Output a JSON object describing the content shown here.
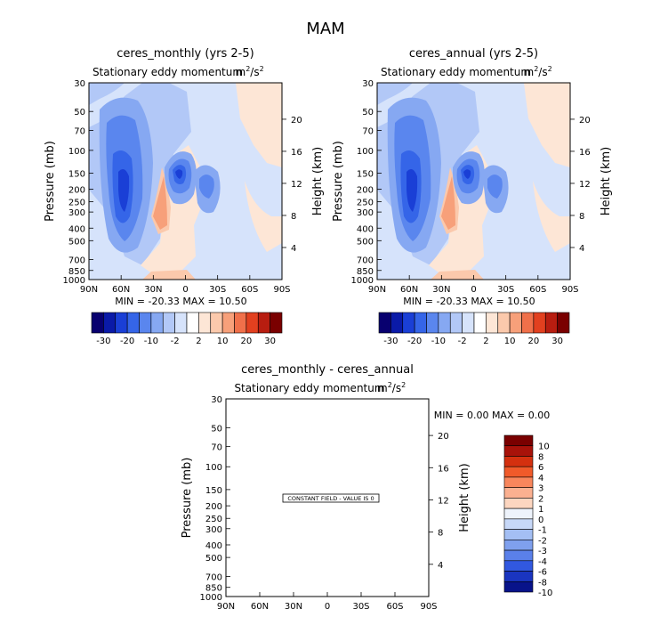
{
  "figure_title": "MAM",
  "chart_data": [
    {
      "type": "contour",
      "title": "ceres_monthly (yrs 2-5)",
      "subtitle": "Stationary eddy momentum",
      "units_base": "m",
      "units_sup1": "2",
      "units_sep": "/s",
      "units_sup2": "2",
      "ylabel": "Pressure (mb)",
      "ylabel_right": "Height (km)",
      "x_ticks": [
        "90N",
        "60N",
        "30N",
        "0",
        "30S",
        "60S",
        "90S"
      ],
      "x_range": [
        90,
        -90
      ],
      "pressure_ticks": [
        "30",
        "50",
        "70",
        "100",
        "150",
        "200",
        "250",
        "300",
        "400",
        "500",
        "700",
        "850",
        "1000"
      ],
      "pressure_values": [
        30,
        50,
        70,
        100,
        150,
        200,
        250,
        300,
        400,
        500,
        700,
        850,
        1000
      ],
      "height_ticks": [
        "20",
        "16",
        "12",
        "8",
        "4"
      ],
      "min_text": "MIN = -20.33",
      "max_text": "MAX = 10.50",
      "min": -20.33,
      "max": 10.5,
      "colorbar_labels": [
        "-30",
        "-20",
        "-10",
        "-2",
        "2",
        "10",
        "20",
        "30"
      ]
    },
    {
      "type": "contour",
      "title": "ceres_annual (yrs 2-5)",
      "subtitle": "Stationary eddy momentum",
      "units_base": "m",
      "units_sup1": "2",
      "units_sep": "/s",
      "units_sup2": "2",
      "ylabel": "Pressure (mb)",
      "ylabel_right": "Height (km)",
      "x_ticks": [
        "90N",
        "60N",
        "30N",
        "0",
        "30S",
        "60S",
        "90S"
      ],
      "x_range": [
        90,
        -90
      ],
      "pressure_ticks": [
        "30",
        "50",
        "70",
        "100",
        "150",
        "200",
        "250",
        "300",
        "400",
        "500",
        "700",
        "850",
        "1000"
      ],
      "pressure_values": [
        30,
        50,
        70,
        100,
        150,
        200,
        250,
        300,
        400,
        500,
        700,
        850,
        1000
      ],
      "height_ticks": [
        "20",
        "16",
        "12",
        "8",
        "4"
      ],
      "min_text": "MIN = -20.33",
      "max_text": "MAX = 10.50",
      "min": -20.33,
      "max": 10.5,
      "colorbar_labels": [
        "-30",
        "-20",
        "-10",
        "-2",
        "2",
        "10",
        "20",
        "30"
      ]
    },
    {
      "type": "contour",
      "title": "ceres_monthly - ceres_annual",
      "subtitle": "Stationary eddy momentum",
      "units_base": "m",
      "units_sup1": "2",
      "units_sep": "/s",
      "units_sup2": "2",
      "ylabel": "Pressure (mb)",
      "ylabel_right": "Height (km)",
      "x_ticks": [
        "90N",
        "60N",
        "30N",
        "0",
        "30S",
        "60S",
        "90S"
      ],
      "x_range": [
        90,
        -90
      ],
      "pressure_ticks": [
        "30",
        "50",
        "70",
        "100",
        "150",
        "200",
        "250",
        "300",
        "400",
        "500",
        "700",
        "850",
        "1000"
      ],
      "pressure_values": [
        30,
        50,
        70,
        100,
        150,
        200,
        250,
        300,
        400,
        500,
        700,
        850,
        1000
      ],
      "height_ticks": [
        "20",
        "16",
        "12",
        "8",
        "4"
      ],
      "min_text": "MIN =    0.00",
      "max_text": "MAX =    0.00",
      "min": 0.0,
      "max": 0.0,
      "annotation": "CONSTANT FIELD - VALUE IS 0",
      "colorbar_labels": [
        "10",
        "8",
        "6",
        "4",
        "3",
        "2",
        "1",
        "0",
        "-1",
        "-2",
        "-3",
        "-4",
        "-6",
        "-8",
        "-10"
      ]
    }
  ],
  "colors": {
    "main_scale": [
      "#08006f",
      "#0a1aa8",
      "#1a3fd6",
      "#3565e8",
      "#5a86ee",
      "#86a8f2",
      "#b2c8f7",
      "#d6e3fb",
      "#ffffff",
      "#fde6d6",
      "#fbc9ac",
      "#f7a07a",
      "#f0704a",
      "#e2401f",
      "#b81d10",
      "#7a0000"
    ],
    "diff_scale": [
      "#7a0000",
      "#a8120a",
      "#d4300f",
      "#f05a2a",
      "#f8865c",
      "#fbb090",
      "#fdd6c0",
      "#eef3fb",
      "#c7d8f8",
      "#a4bff4",
      "#7fa0ee",
      "#5a80ea",
      "#3158e0",
      "#1a35c0",
      "#08138a"
    ]
  }
}
